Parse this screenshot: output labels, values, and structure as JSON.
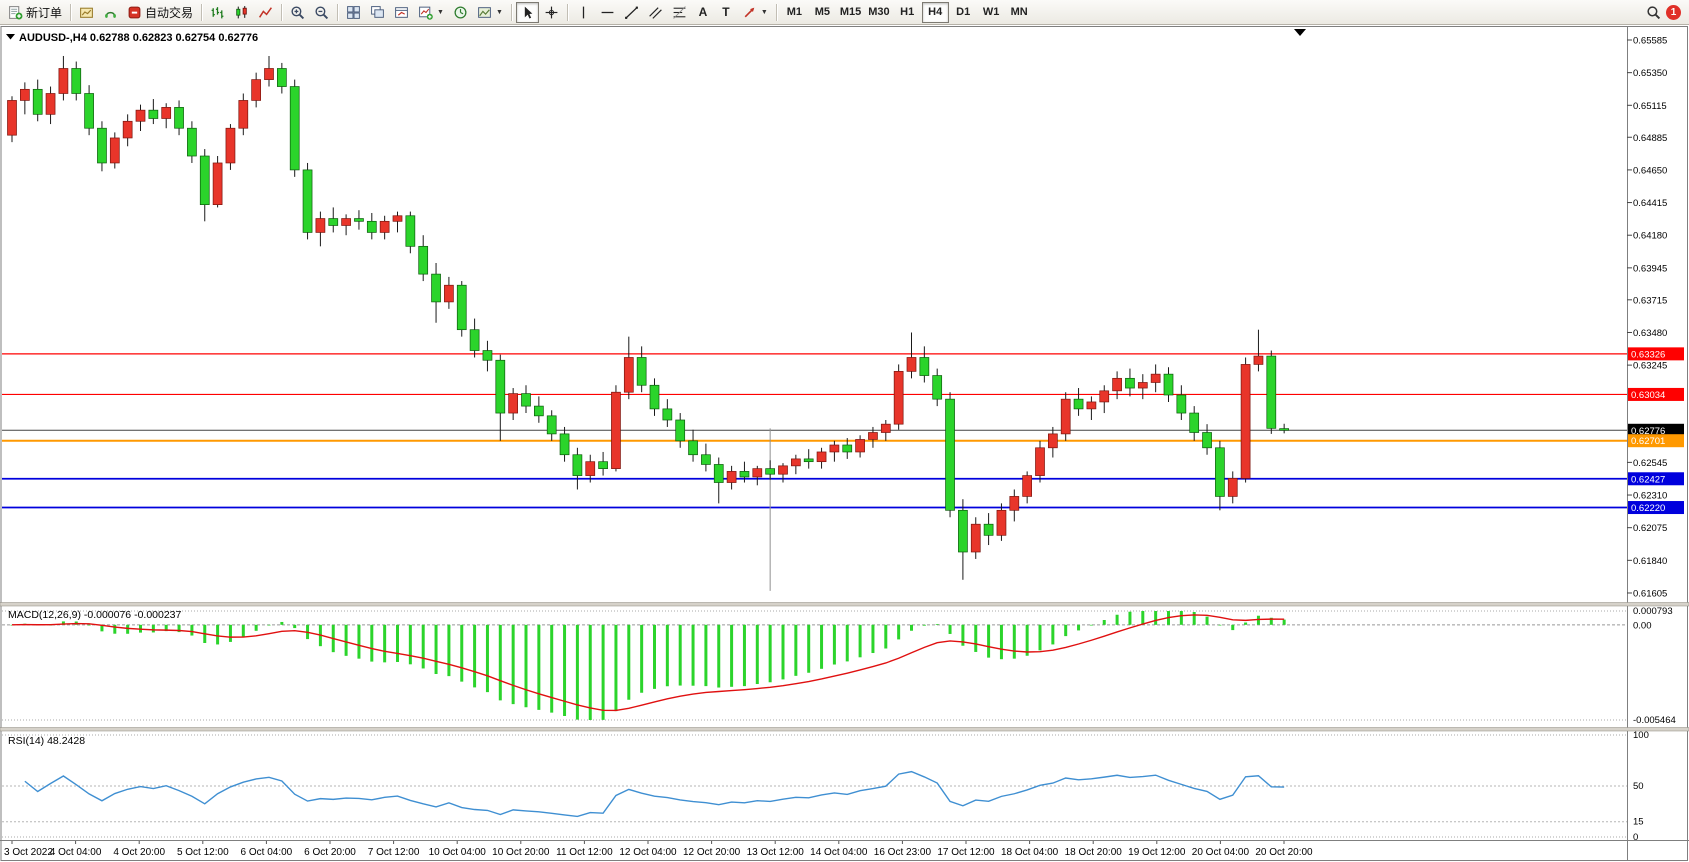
{
  "toolbar": {
    "new_order_label": "新订单",
    "auto_trading_label": "自动交易",
    "timeframes": [
      "M1",
      "M5",
      "M15",
      "M30",
      "H1",
      "H4",
      "D1",
      "W1",
      "MN"
    ],
    "active_timeframe": "H4",
    "notification_count": "1",
    "icon_names": [
      "new-order",
      "chart-profile",
      "market-watch",
      "auto-trading",
      "bar-chart",
      "candlestick",
      "line-chart",
      "zoom-in",
      "zoom-out",
      "tile-windows",
      "cascade-windows",
      "arrange-windows",
      "new-chart",
      "auto-scroll",
      "templates",
      "cursor",
      "crosshair",
      "vertical-line",
      "horizontal-line",
      "trendline",
      "equidistant-channel",
      "fibonacci",
      "text",
      "text-label",
      "arrows",
      "search",
      "notifications"
    ]
  },
  "chart": {
    "symbol_title": "AUDUSD-,H4",
    "ohlc_text": "0.62788 0.62823 0.62754 0.62776",
    "open": "0.62788",
    "high": "0.62823",
    "low": "0.62754",
    "close": "0.62776",
    "price_axis_ticks": [
      "0.65585",
      "0.65350",
      "0.65115",
      "0.64885",
      "0.64650",
      "0.64415",
      "0.64180",
      "0.63945",
      "0.63715",
      "0.63480",
      "0.63245",
      "0.62545",
      "0.62310",
      "0.62075",
      "0.61840",
      "0.61605"
    ],
    "price_labels": [
      {
        "text": "0.63326",
        "price": 0.63326,
        "bg": "#ff0000",
        "fg": "#ffffff"
      },
      {
        "text": "0.63034",
        "price": 0.63034,
        "bg": "#ff0000",
        "fg": "#ffffff"
      },
      {
        "text": "0.62776",
        "price": 0.62776,
        "bg": "#000000",
        "fg": "#ffffff"
      },
      {
        "text": "0.62701",
        "price": 0.62701,
        "bg": "#ff9900",
        "fg": "#ffffff"
      },
      {
        "text": "0.62427",
        "price": 0.62427,
        "bg": "#0000dd",
        "fg": "#ffffff"
      },
      {
        "text": "0.62220",
        "price": 0.6222,
        "bg": "#0000dd",
        "fg": "#ffffff"
      }
    ],
    "object_lines": [
      {
        "price": 0.63326,
        "color": "#ff0000",
        "width": 1.2
      },
      {
        "price": 0.63034,
        "color": "#ff0000",
        "width": 1.2
      },
      {
        "price": 0.62701,
        "color": "#ff9900",
        "width": 2
      },
      {
        "price": 0.62427,
        "color": "#0000dd",
        "width": 1.8
      },
      {
        "price": 0.6222,
        "color": "#0000dd",
        "width": 1.8
      }
    ],
    "current_price_line": {
      "price": 0.62776,
      "color": "#444444"
    },
    "vertical_line": {
      "candle_index": 59,
      "from_price": 0.6279,
      "to_price": 0.6162,
      "color": "#909090"
    },
    "time_axis": [
      "3 Oct 2022",
      "4 Oct 04:00",
      "4 Oct 20:00",
      "5 Oct 12:00",
      "6 Oct 04:00",
      "6 Oct 20:00",
      "7 Oct 12:00",
      "10 Oct 04:00",
      "10 Oct 20:00",
      "11 Oct 12:00",
      "12 Oct 04:00",
      "12 Oct 20:00",
      "13 Oct 12:00",
      "14 Oct 04:00",
      "16 Oct 23:00",
      "17 Oct 12:00",
      "18 Oct 04:00",
      "18 Oct 20:00",
      "19 Oct 12:00",
      "20 Oct 04:00",
      "20 Oct 20:00"
    ],
    "colors": {
      "bull_up": "#e8352a",
      "bear_down": "#2bd42b",
      "wick": "#1a1a1a",
      "background": "#ffffff",
      "frame": "#7f7f7f",
      "macd_histogram": "#2bd42b",
      "macd_signal": "#e01010",
      "rsi_line": "#3f8fd2"
    }
  },
  "macd_panel": {
    "label": "MACD(12,26,9)",
    "value_text": "-0.000076 -0.000237",
    "axis_ticks": [
      "0.000793",
      "0.00",
      "-0.005464"
    ],
    "axis_max": 0.000793,
    "axis_min": -0.005464
  },
  "rsi_panel": {
    "label": "RSI(14)",
    "value_text": "48.2428",
    "axis_ticks": [
      "100",
      "50",
      "15",
      "0"
    ],
    "levels": [
      50,
      15
    ]
  },
  "chart_data": {
    "type": "candlestick",
    "symbol": "AUDUSD-",
    "period": "H4",
    "title": "AUDUSD-,H4 0.62788 0.62823 0.62754 0.62776",
    "current_price": 0.62776,
    "price_range": [
      0.6154,
      0.6567
    ],
    "horizontal_levels": [
      0.63326,
      0.63034,
      0.62701,
      0.62427,
      0.6222
    ],
    "x_labels": [
      "3 Oct 2022",
      "4 Oct 04:00",
      "4 Oct 20:00",
      "5 Oct 12:00",
      "6 Oct 04:00",
      "6 Oct 20:00",
      "7 Oct 12:00",
      "10 Oct 04:00",
      "10 Oct 20:00",
      "11 Oct 12:00",
      "12 Oct 04:00",
      "12 Oct 20:00",
      "13 Oct 12:00",
      "14 Oct 04:00",
      "16 Oct 23:00",
      "17 Oct 12:00",
      "18 Oct 04:00",
      "18 Oct 20:00",
      "19 Oct 12:00",
      "20 Oct 04:00",
      "20 Oct 20:00"
    ],
    "indicators": [
      {
        "name": "MACD",
        "params": [
          12,
          26,
          9
        ],
        "current": [
          -7.6e-05,
          -0.000237
        ],
        "axis_max": 0.000793,
        "axis_min": -0.005464
      },
      {
        "name": "RSI",
        "params": [
          14
        ],
        "current": 48.2428,
        "scale": [
          0,
          100
        ],
        "levels": [
          50,
          15
        ]
      }
    ],
    "candles_ohlc": [
      [
        0.649,
        0.6518,
        0.6485,
        0.6515
      ],
      [
        0.6515,
        0.6528,
        0.6505,
        0.6523
      ],
      [
        0.6523,
        0.653,
        0.65,
        0.6505
      ],
      [
        0.6505,
        0.6525,
        0.6498,
        0.652
      ],
      [
        0.652,
        0.6547,
        0.6515,
        0.6538
      ],
      [
        0.6538,
        0.6543,
        0.6515,
        0.652
      ],
      [
        0.652,
        0.6526,
        0.649,
        0.6495
      ],
      [
        0.6495,
        0.65,
        0.6464,
        0.647
      ],
      [
        0.647,
        0.6492,
        0.6466,
        0.6488
      ],
      [
        0.6488,
        0.6505,
        0.6482,
        0.65
      ],
      [
        0.65,
        0.6512,
        0.6493,
        0.6508
      ],
      [
        0.6508,
        0.6516,
        0.6498,
        0.6502
      ],
      [
        0.6502,
        0.6513,
        0.6495,
        0.651
      ],
      [
        0.651,
        0.6515,
        0.649,
        0.6495
      ],
      [
        0.6495,
        0.65,
        0.647,
        0.6475
      ],
      [
        0.6475,
        0.648,
        0.6428,
        0.644
      ],
      [
        0.644,
        0.6475,
        0.6438,
        0.647
      ],
      [
        0.647,
        0.6498,
        0.6465,
        0.6495
      ],
      [
        0.6495,
        0.652,
        0.649,
        0.6515
      ],
      [
        0.6515,
        0.6535,
        0.651,
        0.653
      ],
      [
        0.653,
        0.6547,
        0.6525,
        0.6538
      ],
      [
        0.6538,
        0.6542,
        0.652,
        0.6525
      ],
      [
        0.6525,
        0.653,
        0.646,
        0.6465
      ],
      [
        0.6465,
        0.647,
        0.6415,
        0.642
      ],
      [
        0.642,
        0.6435,
        0.641,
        0.643
      ],
      [
        0.643,
        0.6438,
        0.642,
        0.6425
      ],
      [
        0.6425,
        0.6433,
        0.6418,
        0.643
      ],
      [
        0.643,
        0.6436,
        0.6422,
        0.6428
      ],
      [
        0.6428,
        0.6434,
        0.6415,
        0.642
      ],
      [
        0.642,
        0.6432,
        0.6415,
        0.6428
      ],
      [
        0.6428,
        0.6435,
        0.642,
        0.6432
      ],
      [
        0.6432,
        0.6435,
        0.6405,
        0.641
      ],
      [
        0.641,
        0.6418,
        0.6385,
        0.639
      ],
      [
        0.639,
        0.6398,
        0.6355,
        0.637
      ],
      [
        0.637,
        0.6388,
        0.6365,
        0.6382
      ],
      [
        0.6382,
        0.6385,
        0.6345,
        0.635
      ],
      [
        0.635,
        0.6358,
        0.633,
        0.6335
      ],
      [
        0.6335,
        0.6342,
        0.632,
        0.6328
      ],
      [
        0.6328,
        0.6332,
        0.627,
        0.629
      ],
      [
        0.629,
        0.6308,
        0.6285,
        0.6304
      ],
      [
        0.6304,
        0.631,
        0.629,
        0.6295
      ],
      [
        0.6295,
        0.6302,
        0.6283,
        0.6288
      ],
      [
        0.6288,
        0.6292,
        0.627,
        0.6275
      ],
      [
        0.6275,
        0.628,
        0.6255,
        0.626
      ],
      [
        0.626,
        0.6265,
        0.6235,
        0.6245
      ],
      [
        0.6245,
        0.626,
        0.624,
        0.6255
      ],
      [
        0.6255,
        0.6262,
        0.6245,
        0.625
      ],
      [
        0.625,
        0.631,
        0.6248,
        0.6305
      ],
      [
        0.6305,
        0.6345,
        0.63,
        0.633
      ],
      [
        0.633,
        0.6338,
        0.6305,
        0.631
      ],
      [
        0.631,
        0.6315,
        0.6288,
        0.6293
      ],
      [
        0.6293,
        0.63,
        0.628,
        0.6285
      ],
      [
        0.6285,
        0.629,
        0.6265,
        0.627
      ],
      [
        0.627,
        0.6278,
        0.6255,
        0.626
      ],
      [
        0.626,
        0.6268,
        0.6248,
        0.6253
      ],
      [
        0.6253,
        0.6258,
        0.6225,
        0.624
      ],
      [
        0.624,
        0.6252,
        0.6235,
        0.6248
      ],
      [
        0.6248,
        0.6255,
        0.624,
        0.6244
      ],
      [
        0.6244,
        0.6252,
        0.6238,
        0.625
      ],
      [
        0.625,
        0.6256,
        0.6242,
        0.6246
      ],
      [
        0.6246,
        0.6254,
        0.624,
        0.6252
      ],
      [
        0.6252,
        0.626,
        0.6246,
        0.6257
      ],
      [
        0.6257,
        0.6264,
        0.625,
        0.6255
      ],
      [
        0.6255,
        0.6265,
        0.625,
        0.6262
      ],
      [
        0.6262,
        0.627,
        0.6255,
        0.6267
      ],
      [
        0.6267,
        0.6272,
        0.6257,
        0.6262
      ],
      [
        0.6262,
        0.6274,
        0.6258,
        0.6271
      ],
      [
        0.6271,
        0.628,
        0.6265,
        0.6276
      ],
      [
        0.6276,
        0.6285,
        0.627,
        0.6282
      ],
      [
        0.6282,
        0.6325,
        0.6278,
        0.632
      ],
      [
        0.632,
        0.6348,
        0.6315,
        0.633
      ],
      [
        0.633,
        0.6338,
        0.6312,
        0.6317
      ],
      [
        0.6317,
        0.6322,
        0.6295,
        0.63
      ],
      [
        0.63,
        0.6305,
        0.6215,
        0.622
      ],
      [
        0.622,
        0.6228,
        0.617,
        0.619
      ],
      [
        0.619,
        0.6215,
        0.6185,
        0.621
      ],
      [
        0.621,
        0.6218,
        0.6195,
        0.6202
      ],
      [
        0.6202,
        0.6225,
        0.6198,
        0.622
      ],
      [
        0.622,
        0.6235,
        0.6212,
        0.623
      ],
      [
        0.623,
        0.6248,
        0.6225,
        0.6245
      ],
      [
        0.6245,
        0.627,
        0.624,
        0.6265
      ],
      [
        0.6265,
        0.628,
        0.6258,
        0.6275
      ],
      [
        0.6275,
        0.6305,
        0.627,
        0.63
      ],
      [
        0.63,
        0.6308,
        0.6288,
        0.6293
      ],
      [
        0.6293,
        0.6302,
        0.6285,
        0.6298
      ],
      [
        0.6298,
        0.631,
        0.629,
        0.6306
      ],
      [
        0.6306,
        0.632,
        0.63,
        0.6315
      ],
      [
        0.6315,
        0.6322,
        0.6302,
        0.6308
      ],
      [
        0.6308,
        0.6318,
        0.63,
        0.6312
      ],
      [
        0.6312,
        0.6325,
        0.6305,
        0.6318
      ],
      [
        0.6318,
        0.6323,
        0.6298,
        0.6303
      ],
      [
        0.6303,
        0.631,
        0.6285,
        0.629
      ],
      [
        0.629,
        0.6295,
        0.627,
        0.6276
      ],
      [
        0.6276,
        0.6282,
        0.626,
        0.6265
      ],
      [
        0.6265,
        0.627,
        0.622,
        0.623
      ],
      [
        0.623,
        0.6248,
        0.6225,
        0.6243
      ],
      [
        0.6243,
        0.633,
        0.624,
        0.6325
      ],
      [
        0.6325,
        0.635,
        0.632,
        0.6331
      ],
      [
        0.6331,
        0.6335,
        0.6275,
        0.6279
      ],
      [
        0.62788,
        0.62823,
        0.62754,
        0.62776
      ]
    ]
  }
}
